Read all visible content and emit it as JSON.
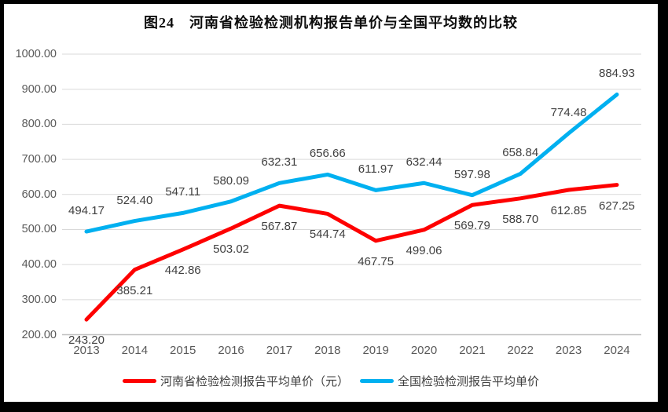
{
  "chart_data": {
    "type": "line",
    "title": "图24　河南省检验检测机构报告单价与全国平均数的比较",
    "categories": [
      "2013",
      "2014",
      "2015",
      "2016",
      "2017",
      "2018",
      "2019",
      "2020",
      "2021",
      "2022",
      "2023",
      "2024"
    ],
    "series": [
      {
        "name": "河南省检验检测报告平均单价（元）",
        "color": "#FE0000",
        "label_position": "below",
        "values": [
          243.2,
          385.21,
          442.86,
          503.02,
          567.87,
          544.74,
          467.75,
          499.06,
          569.79,
          588.7,
          612.85,
          627.25
        ]
      },
      {
        "name": "全国检验检测报告平均单价",
        "color": "#00B0F0",
        "label_position": "above",
        "values": [
          494.17,
          524.4,
          547.11,
          580.09,
          632.31,
          656.66,
          611.97,
          632.44,
          597.98,
          658.84,
          774.48,
          884.93
        ]
      }
    ],
    "ylim": [
      200,
      1000
    ],
    "ytick_step": 100,
    "ytick_format_decimals": 2,
    "grid": true,
    "legend_position": "bottom",
    "colors": {
      "gridline": "#D9D9D9",
      "axis_line": "#BFBFBF",
      "axis_text": "#595959",
      "data_label_text": "#404040",
      "title_text": "#0d0d0d",
      "plot_background": "#FFFFFF",
      "frame_background": "#000000"
    }
  }
}
